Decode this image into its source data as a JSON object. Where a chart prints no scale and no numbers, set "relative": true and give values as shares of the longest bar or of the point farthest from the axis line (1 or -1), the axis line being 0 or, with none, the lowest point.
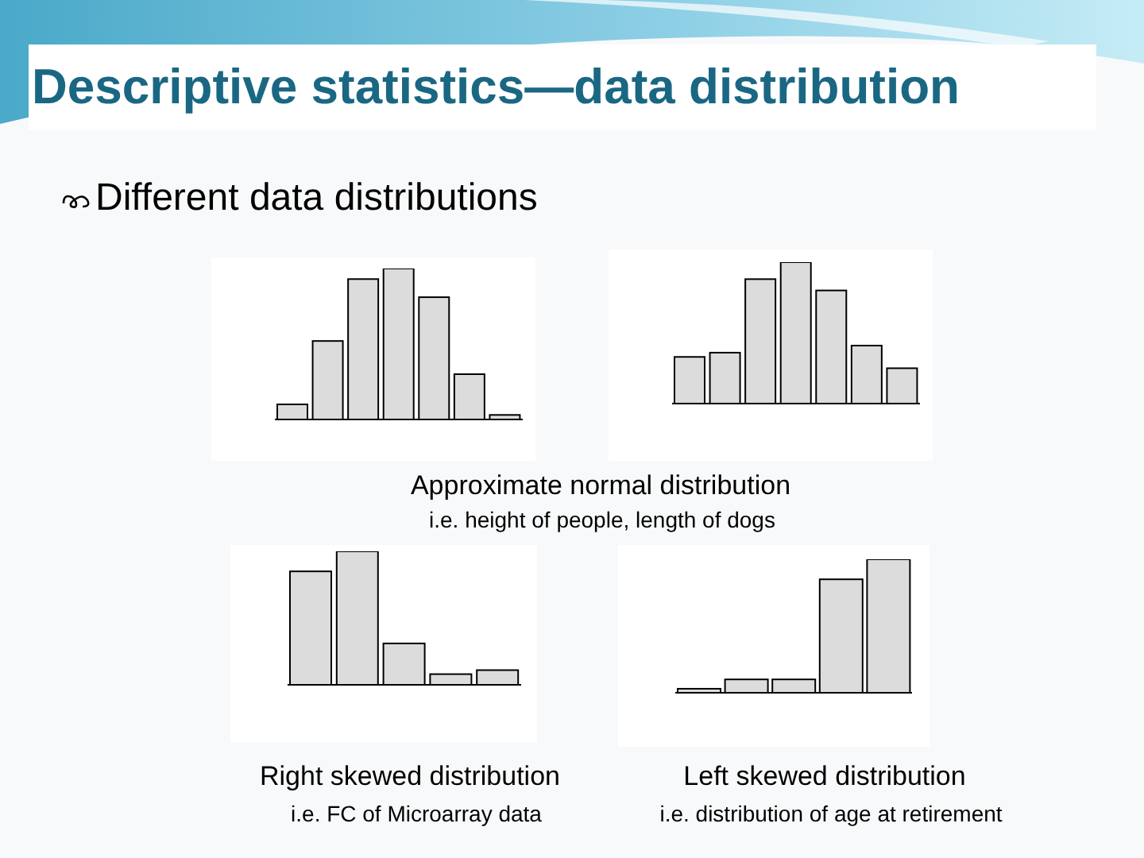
{
  "chart_data": [
    {
      "type": "bar",
      "title": "Descriptive statistics—data distribution",
      "subtitle": "Different data distributions",
      "categories": [
        null,
        null,
        null,
        null,
        null,
        null,
        null
      ],
      "values": [
        0.1,
        0.52,
        0.93,
        1,
        0.81,
        0.3,
        0.03
      ],
      "color": "#dcdcdc",
      "relative": true,
      "annotations": [
        "Approximate normal distribution",
        "i.e. height of people, length of dogs"
      ]
    },
    {
      "type": "bar",
      "categories": [
        null,
        null,
        null,
        null,
        null,
        null,
        null
      ],
      "values": [
        0.33,
        0.36,
        0.88,
        1,
        0.8,
        0.41,
        0.25
      ],
      "color": "#dcdcdc",
      "relative": true
    },
    {
      "type": "bar",
      "categories": [
        null,
        null,
        null,
        null,
        null
      ],
      "values": [
        0.85,
        1,
        0.31,
        0.08,
        0.11
      ],
      "color": "#dcdcdc",
      "relative": true,
      "annotations": [
        "Right skewed distribution",
        "i.e. FC of Microarray data"
      ]
    },
    {
      "type": "bar",
      "categories": [
        null,
        null,
        null,
        null,
        null
      ],
      "values": [
        0.03,
        0.1,
        0.1,
        0.85,
        1
      ],
      "color": "#dcdcdc",
      "relative": true,
      "annotations": [
        "Left skewed distribution",
        "i.e. distribution of age at retirement"
      ]
    }
  ]
}
